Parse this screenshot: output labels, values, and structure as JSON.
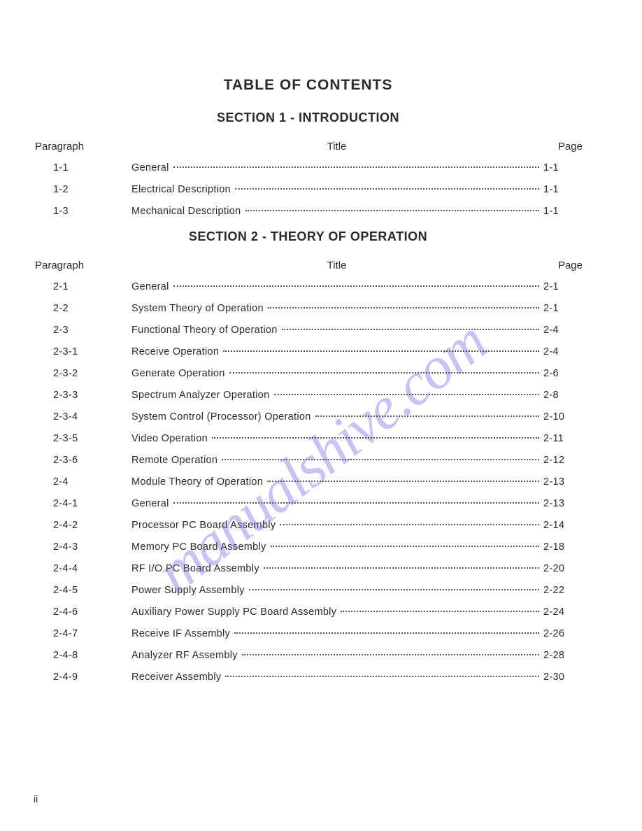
{
  "main_title": "TABLE OF CONTENTS",
  "watermark_text": "manualshive.com",
  "footer_page": "ii",
  "columns": {
    "paragraph": "Paragraph",
    "title": "Title",
    "page": "Page"
  },
  "sections": [
    {
      "heading": "SECTION 1 - INTRODUCTION",
      "rows": [
        {
          "para": "1-1",
          "title": "General",
          "page": "1-1"
        },
        {
          "para": "1-2",
          "title": "Electrical Description",
          "page": "1-1"
        },
        {
          "para": "1-3",
          "title": "Mechanical Description",
          "page": "1-1"
        }
      ]
    },
    {
      "heading": "SECTION 2 - THEORY OF OPERATION",
      "rows": [
        {
          "para": "2-1",
          "title": "General",
          "page": "2-1"
        },
        {
          "para": "2-2",
          "title": "System Theory of Operation",
          "page": "2-1"
        },
        {
          "para": "2-3",
          "title": "Functional Theory of Operation",
          "page": "2-4"
        },
        {
          "para": "2-3-1",
          "title": "Receive Operation",
          "page": "2-4"
        },
        {
          "para": "2-3-2",
          "title": "Generate Operation",
          "page": "2-6"
        },
        {
          "para": "2-3-3",
          "title": "Spectrum Analyzer Operation",
          "page": "2-8"
        },
        {
          "para": "2-3-4",
          "title": "System Control (Processor) Operation",
          "page": "2-10"
        },
        {
          "para": "2-3-5",
          "title": "Video Operation",
          "page": "2-11"
        },
        {
          "para": "2-3-6",
          "title": "Remote Operation",
          "page": "2-12"
        },
        {
          "para": "2-4",
          "title": "Module Theory of Operation",
          "page": "2-13"
        },
        {
          "para": "2-4-1",
          "title": "General",
          "page": "2-13"
        },
        {
          "para": "2-4-2",
          "title": "Processor PC Board Assembly",
          "page": "2-14"
        },
        {
          "para": "2-4-3",
          "title": "Memory PC Board Assembly",
          "page": "2-18"
        },
        {
          "para": "2-4-4",
          "title": "RF I/O PC Board Assembly",
          "page": "2-20"
        },
        {
          "para": "2-4-5",
          "title": "Power Supply Assembly",
          "page": "2-22"
        },
        {
          "para": "2-4-6",
          "title": "Auxiliary Power Supply PC Board Assembly",
          "page": "2-24"
        },
        {
          "para": "2-4-7",
          "title": "Receive IF Assembly",
          "page": "2-26"
        },
        {
          "para": "2-4-8",
          "title": "Analyzer RF Assembly",
          "page": "2-28"
        },
        {
          "para": "2-4-9",
          "title": "Receiver Assembly",
          "page": "2-30"
        }
      ]
    }
  ]
}
